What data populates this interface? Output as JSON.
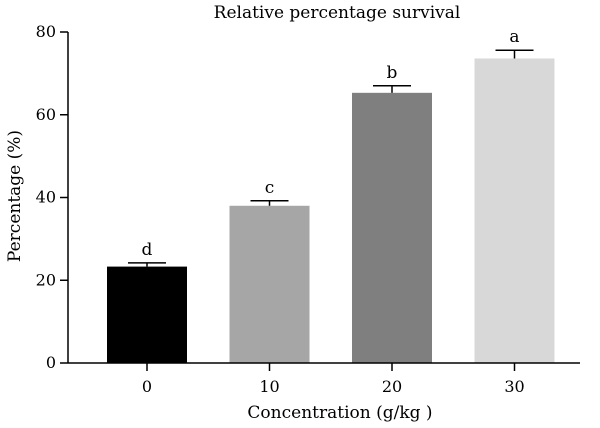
{
  "chart_data": {
    "type": "bar",
    "title": "Relative percentage survival",
    "xlabel": "Concentration (g/kg )",
    "ylabel": "Percentage (%)",
    "categories": [
      "0",
      "10",
      "20",
      "30"
    ],
    "values": [
      23.3,
      38.0,
      65.3,
      73.6
    ],
    "errors": [
      0.9,
      1.2,
      1.7,
      2.0
    ],
    "significance_labels": [
      "d",
      "c",
      "b",
      "a"
    ],
    "bar_colors": [
      "#000000",
      "#a6a6a7",
      "#7f7f7f",
      "#d8d8d8"
    ],
    "ylim": [
      0,
      80
    ],
    "yticks": [
      0,
      20,
      40,
      60,
      80
    ],
    "grid": false,
    "legend": "none"
  }
}
